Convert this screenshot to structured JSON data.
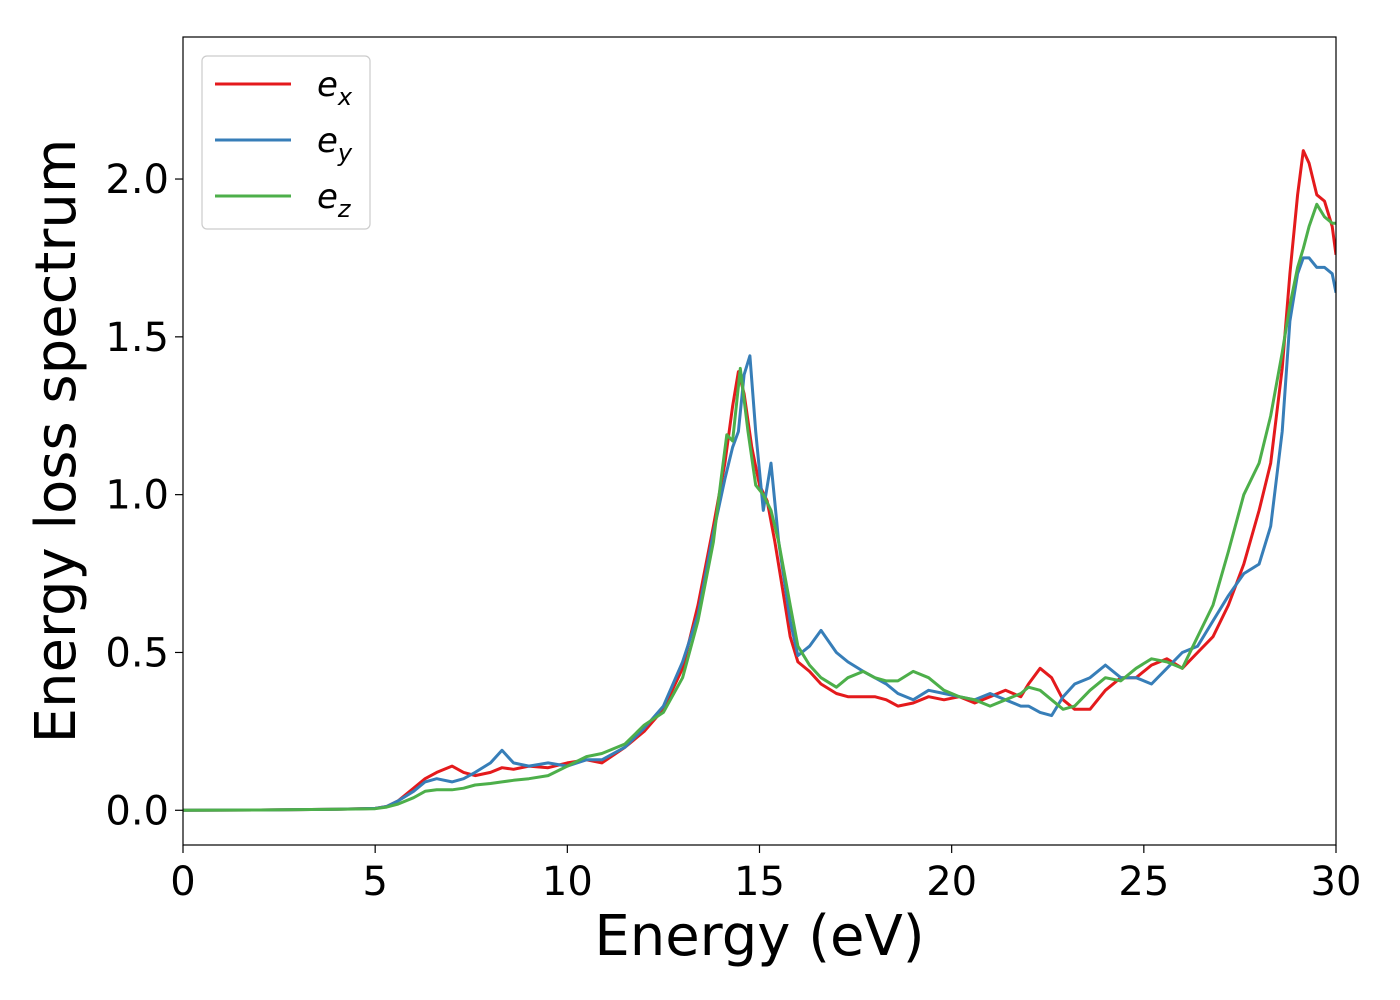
{
  "chart_data": {
    "type": "line",
    "title": "",
    "xlabel": "Energy (eV)",
    "ylabel": "Energy loss spectrum",
    "xlim": [
      0,
      30
    ],
    "ylim": [
      -0.11,
      2.45
    ],
    "xticks": [
      0,
      5,
      10,
      15,
      20,
      25,
      30
    ],
    "xtick_labels": [
      "0",
      "5",
      "10",
      "15",
      "20",
      "25",
      "30"
    ],
    "yticks": [
      0.0,
      0.5,
      1.0,
      1.5,
      2.0
    ],
    "ytick_labels": [
      "0.0",
      "0.5",
      "1.0",
      "1.5",
      "2.0"
    ],
    "grid": false,
    "legend_position": "top-left",
    "series": [
      {
        "name": "e_x",
        "legend_main": "e",
        "legend_sub": "x",
        "color": "#e41a1c",
        "x": [
          0,
          2,
          4,
          5,
          5.3,
          5.6,
          6.0,
          6.3,
          6.6,
          7.0,
          7.3,
          7.6,
          8.0,
          8.3,
          8.6,
          9.0,
          9.5,
          10.0,
          10.5,
          10.9,
          11.5,
          12.0,
          12.5,
          13.0,
          13.4,
          13.8,
          14.1,
          14.3,
          14.45,
          14.6,
          14.8,
          15.0,
          15.2,
          15.4,
          15.6,
          15.8,
          16.0,
          16.3,
          16.6,
          17.0,
          17.3,
          17.7,
          18.0,
          18.3,
          18.6,
          19.0,
          19.4,
          19.8,
          20.2,
          20.6,
          21.0,
          21.4,
          21.8,
          22.0,
          22.3,
          22.6,
          22.9,
          23.2,
          23.6,
          24.0,
          24.4,
          24.8,
          25.2,
          25.6,
          26.0,
          26.4,
          26.8,
          27.2,
          27.6,
          28.0,
          28.3,
          28.6,
          28.8,
          29.0,
          29.15,
          29.3,
          29.5,
          29.7,
          29.9,
          30.0
        ],
        "y": [
          0.0,
          0.001,
          0.003,
          0.006,
          0.012,
          0.03,
          0.07,
          0.1,
          0.12,
          0.14,
          0.12,
          0.11,
          0.12,
          0.135,
          0.13,
          0.14,
          0.135,
          0.15,
          0.16,
          0.15,
          0.2,
          0.25,
          0.32,
          0.45,
          0.65,
          0.9,
          1.1,
          1.28,
          1.39,
          1.32,
          1.15,
          1.03,
          0.98,
          0.85,
          0.7,
          0.55,
          0.47,
          0.44,
          0.4,
          0.37,
          0.36,
          0.36,
          0.36,
          0.35,
          0.33,
          0.34,
          0.36,
          0.35,
          0.36,
          0.34,
          0.36,
          0.38,
          0.36,
          0.4,
          0.45,
          0.42,
          0.35,
          0.32,
          0.32,
          0.38,
          0.42,
          0.42,
          0.46,
          0.48,
          0.45,
          0.5,
          0.55,
          0.65,
          0.78,
          0.95,
          1.1,
          1.4,
          1.7,
          1.95,
          2.09,
          2.05,
          1.95,
          1.93,
          1.85,
          1.76
        ]
      },
      {
        "name": "e_y",
        "legend_main": "e",
        "legend_sub": "y",
        "color": "#377eb8",
        "x": [
          0,
          2,
          4,
          5,
          5.3,
          5.6,
          6.0,
          6.3,
          6.6,
          7.0,
          7.3,
          7.6,
          8.0,
          8.3,
          8.6,
          9.0,
          9.5,
          10.0,
          10.5,
          10.9,
          11.5,
          12.0,
          12.5,
          13.0,
          13.4,
          13.8,
          14.1,
          14.3,
          14.45,
          14.6,
          14.75,
          14.9,
          15.1,
          15.3,
          15.5,
          15.8,
          16.0,
          16.3,
          16.6,
          17.0,
          17.3,
          17.7,
          18.0,
          18.3,
          18.6,
          19.0,
          19.4,
          19.8,
          20.2,
          20.6,
          21.0,
          21.4,
          21.8,
          22.0,
          22.3,
          22.6,
          22.9,
          23.2,
          23.6,
          24.0,
          24.4,
          24.8,
          25.2,
          25.6,
          26.0,
          26.4,
          26.8,
          27.2,
          27.6,
          28.0,
          28.3,
          28.6,
          28.8,
          29.0,
          29.15,
          29.3,
          29.5,
          29.7,
          29.9,
          30.0
        ],
        "y": [
          0.0,
          0.001,
          0.003,
          0.006,
          0.012,
          0.03,
          0.06,
          0.09,
          0.1,
          0.09,
          0.1,
          0.12,
          0.15,
          0.19,
          0.15,
          0.14,
          0.15,
          0.14,
          0.16,
          0.16,
          0.2,
          0.26,
          0.33,
          0.47,
          0.62,
          0.88,
          1.05,
          1.15,
          1.2,
          1.38,
          1.44,
          1.2,
          0.95,
          1.1,
          0.85,
          0.6,
          0.49,
          0.52,
          0.57,
          0.5,
          0.47,
          0.44,
          0.42,
          0.4,
          0.37,
          0.35,
          0.38,
          0.37,
          0.36,
          0.35,
          0.37,
          0.35,
          0.33,
          0.33,
          0.31,
          0.3,
          0.36,
          0.4,
          0.42,
          0.46,
          0.42,
          0.42,
          0.4,
          0.45,
          0.5,
          0.52,
          0.6,
          0.68,
          0.75,
          0.78,
          0.9,
          1.2,
          1.55,
          1.7,
          1.75,
          1.75,
          1.72,
          1.72,
          1.7,
          1.64
        ]
      },
      {
        "name": "e_z",
        "legend_main": "e",
        "legend_sub": "z",
        "color": "#4daf4a",
        "x": [
          0,
          2,
          4,
          5,
          5.3,
          5.6,
          6.0,
          6.3,
          6.6,
          7.0,
          7.3,
          7.6,
          8.0,
          8.3,
          8.6,
          9.0,
          9.5,
          10.0,
          10.5,
          10.9,
          11.5,
          12.0,
          12.5,
          13.0,
          13.4,
          13.8,
          14.0,
          14.15,
          14.3,
          14.5,
          14.7,
          14.9,
          15.1,
          15.3,
          15.5,
          15.8,
          16.0,
          16.3,
          16.6,
          17.0,
          17.3,
          17.7,
          18.0,
          18.3,
          18.6,
          19.0,
          19.4,
          19.8,
          20.2,
          20.6,
          21.0,
          21.4,
          21.8,
          22.0,
          22.3,
          22.6,
          22.9,
          23.2,
          23.6,
          24.0,
          24.4,
          24.8,
          25.2,
          25.6,
          26.0,
          26.4,
          26.8,
          27.2,
          27.6,
          28.0,
          28.3,
          28.6,
          28.8,
          29.0,
          29.15,
          29.3,
          29.5,
          29.7,
          29.9,
          30.0
        ],
        "y": [
          0.0,
          0.001,
          0.003,
          0.005,
          0.01,
          0.02,
          0.04,
          0.06,
          0.065,
          0.065,
          0.07,
          0.08,
          0.085,
          0.09,
          0.095,
          0.1,
          0.11,
          0.14,
          0.17,
          0.18,
          0.21,
          0.27,
          0.31,
          0.42,
          0.6,
          0.85,
          1.05,
          1.19,
          1.17,
          1.4,
          1.2,
          1.03,
          1.0,
          0.95,
          0.85,
          0.65,
          0.52,
          0.46,
          0.42,
          0.39,
          0.42,
          0.44,
          0.42,
          0.41,
          0.41,
          0.44,
          0.42,
          0.38,
          0.36,
          0.35,
          0.33,
          0.35,
          0.37,
          0.39,
          0.38,
          0.35,
          0.32,
          0.33,
          0.38,
          0.42,
          0.41,
          0.45,
          0.48,
          0.47,
          0.45,
          0.55,
          0.65,
          0.82,
          1.0,
          1.1,
          1.25,
          1.45,
          1.6,
          1.72,
          1.78,
          1.85,
          1.92,
          1.88,
          1.86,
          1.86
        ]
      }
    ]
  }
}
